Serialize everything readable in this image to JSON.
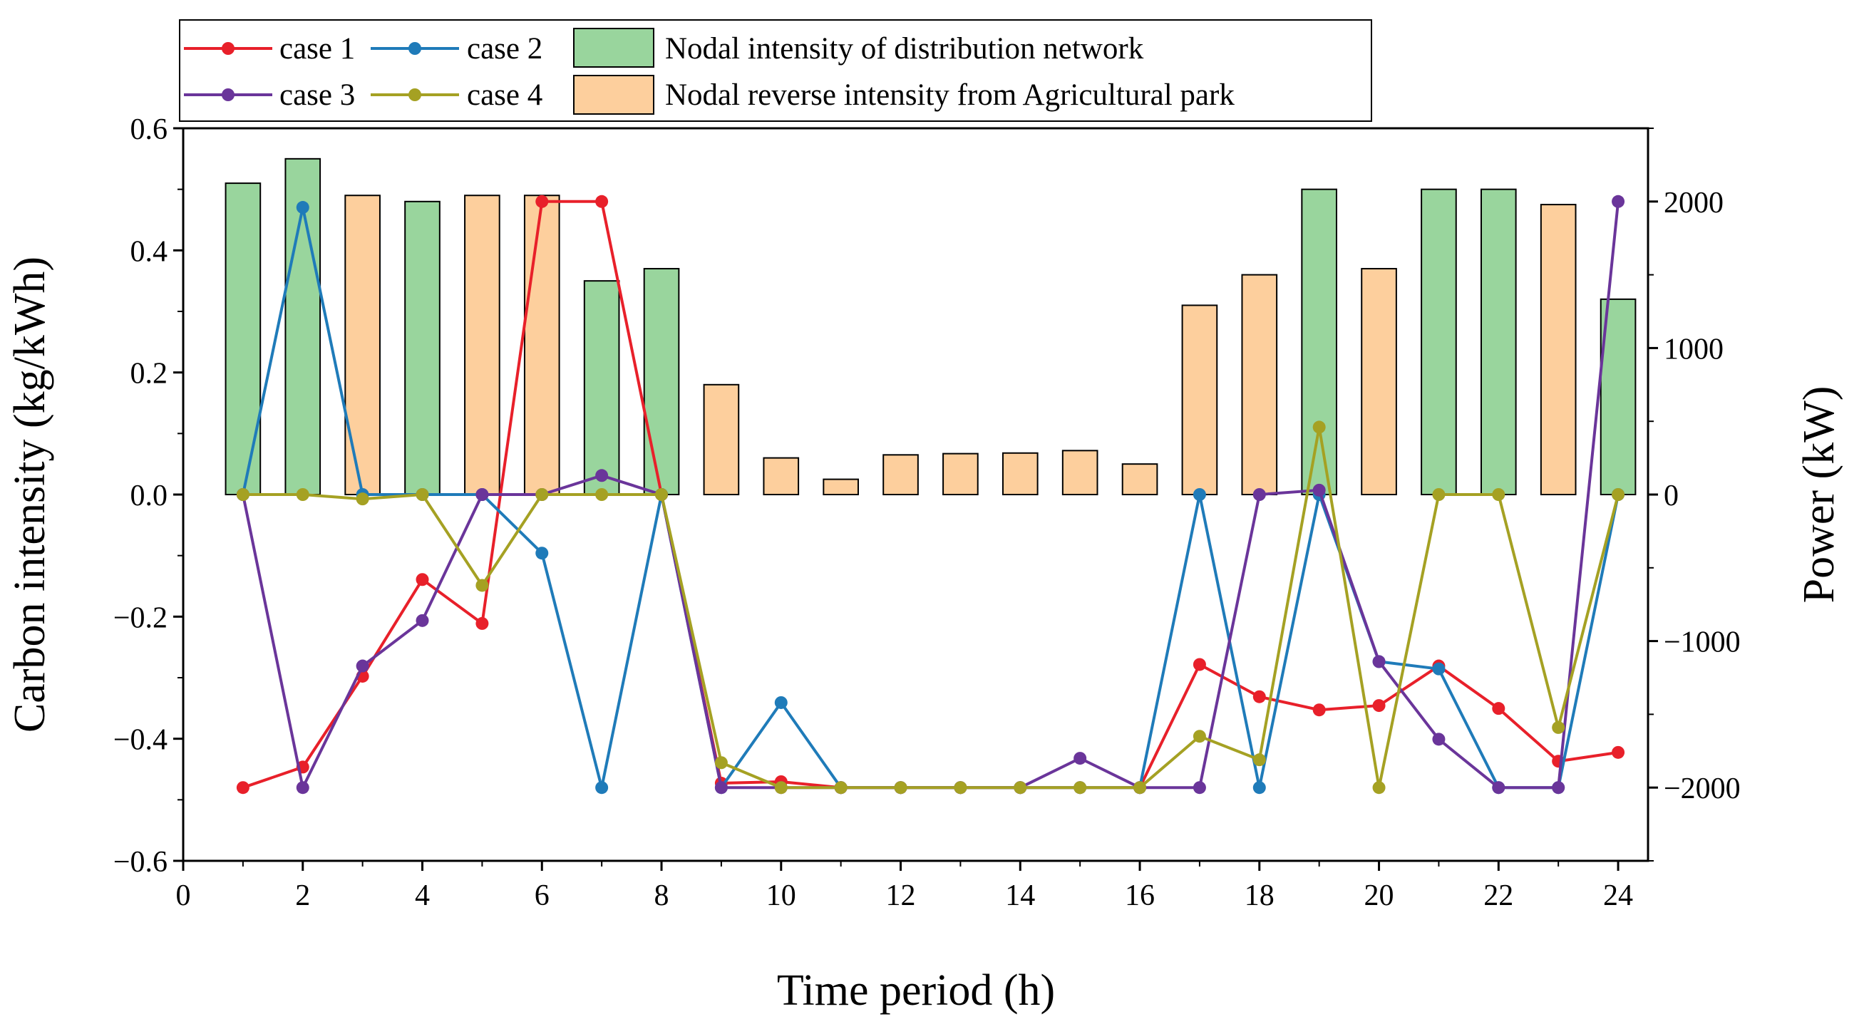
{
  "chart_data": {
    "type": "bar+line",
    "xlabel": "Time period (h)",
    "ylabel_left": "Carbon intensity (kg/kWh)",
    "ylabel_right": "Power (kW)",
    "xlim": [
      0,
      24.5
    ],
    "xticks": [
      0,
      2,
      4,
      6,
      8,
      10,
      12,
      14,
      16,
      18,
      20,
      22,
      24
    ],
    "ylim_left": [
      -0.6,
      0.6
    ],
    "yticks_left": [
      -0.6,
      -0.4,
      -0.2,
      0.0,
      0.2,
      0.4,
      0.6
    ],
    "ytick_labels_left": [
      "−0.6",
      "−0.4",
      "−0.2",
      "0.0",
      "0.2",
      "0.4",
      "0.6"
    ],
    "ylim_right": [
      -2500,
      2500
    ],
    "yticks_right": [
      -2000,
      -1000,
      0,
      1000,
      2000
    ],
    "ytick_labels_right": [
      "−2000",
      "−1000",
      "0",
      "1000",
      "2000"
    ],
    "x": [
      1,
      2,
      3,
      4,
      5,
      6,
      7,
      8,
      9,
      10,
      11,
      12,
      13,
      14,
      15,
      16,
      17,
      18,
      19,
      20,
      21,
      22,
      23,
      24
    ],
    "bars": [
      {
        "name": "Nodal intensity of distribution network",
        "color": "#99d59d",
        "values": [
          0.51,
          0.55,
          0,
          0.48,
          0,
          0,
          0.35,
          0.37,
          0,
          0,
          0,
          0,
          0,
          0,
          0,
          0,
          0,
          0,
          0.5,
          0,
          0.5,
          0.5,
          0,
          0.32
        ]
      },
      {
        "name": "Nodal reverse intensity from Agricultural park",
        "color": "#fdcf9d",
        "values": [
          0,
          0,
          0.49,
          0,
          0.49,
          0.49,
          0,
          0,
          0.18,
          0.06,
          0.025,
          0.065,
          0.067,
          0.068,
          0.072,
          0.05,
          0.31,
          0.36,
          0,
          0.37,
          0,
          0,
          0.475,
          0
        ]
      }
    ],
    "series": [
      {
        "name": "case 1",
        "color": "#e8202a",
        "values": [
          -2000,
          -1860,
          -1240,
          -580,
          -880,
          2000,
          2000,
          0,
          -1970,
          -1960,
          -2000,
          -2000,
          -2000,
          -2000,
          -2000,
          -2000,
          -1160,
          -1380,
          -1470,
          -1440,
          -1170,
          -1460,
          -1820,
          -1760
        ]
      },
      {
        "name": "case 2",
        "color": "#1f7bb9",
        "values": [
          0,
          1960,
          0,
          0,
          0,
          -400,
          -2000,
          0,
          -2000,
          -1420,
          -2000,
          -2000,
          -2000,
          -2000,
          -2000,
          -2000,
          0,
          -2000,
          0,
          -1140,
          -1190,
          -2000,
          -2000,
          0
        ]
      },
      {
        "name": "case 3",
        "color": "#6a359a",
        "values": [
          0,
          -2000,
          -1170,
          -860,
          0,
          0,
          130,
          0,
          -2000,
          -2000,
          -2000,
          -2000,
          -2000,
          -2000,
          -1800,
          -2000,
          -2000,
          0,
          30,
          -1140,
          -1670,
          -2000,
          -2000,
          2000
        ]
      },
      {
        "name": "case 4",
        "color": "#a5a123",
        "values": [
          0,
          0,
          -30,
          0,
          -620,
          0,
          0,
          0,
          -1830,
          -2000,
          -2000,
          -2000,
          -2000,
          -2000,
          -2000,
          -2000,
          -1650,
          -1810,
          460,
          -2000,
          0,
          0,
          -1590,
          0
        ]
      }
    ],
    "legend": {
      "position": "top",
      "items": [
        "case 1",
        "case 2",
        "case 3",
        "case 4",
        "Nodal intensity of distribution network",
        "Nodal reverse intensity from Agricultural park"
      ]
    }
  }
}
